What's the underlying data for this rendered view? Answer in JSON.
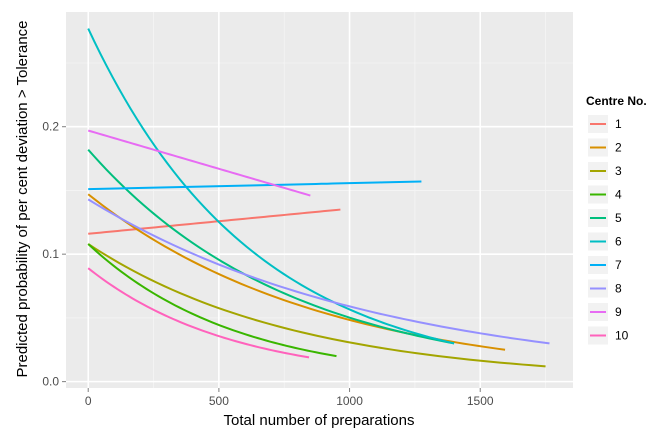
{
  "chart_data": {
    "type": "line",
    "title": "",
    "xlabel": "Total number of preparations",
    "ylabel": "Predicted probability of per cent deviation > Tolerance",
    "xlim": [
      -85,
      1855
    ],
    "ylim": [
      -0.005,
      0.29
    ],
    "x_ticks": [
      0,
      500,
      1000,
      1500
    ],
    "x_tick_labels": [
      "0",
      "500",
      "1000",
      "1500"
    ],
    "y_ticks": [
      0.0,
      0.1,
      0.2
    ],
    "y_tick_labels": [
      "0.0",
      "0.1",
      "0.2"
    ],
    "grid": true,
    "legend_title": "Centre No.",
    "legend_position": "right",
    "series": [
      {
        "name": "1",
        "color": "#F8766D",
        "x0": 0,
        "x1": 965,
        "y0": 0.116,
        "y1": 0.135,
        "form": "linear"
      },
      {
        "name": "2",
        "color": "#D89000",
        "x0": 0,
        "x1": 1595,
        "y0": 0.147,
        "y1": 0.025,
        "form": "exp"
      },
      {
        "name": "3",
        "color": "#A3A500",
        "x0": 0,
        "x1": 1750,
        "y0": 0.108,
        "y1": 0.012,
        "form": "exp"
      },
      {
        "name": "4",
        "color": "#39B600",
        "x0": 0,
        "x1": 950,
        "y0": 0.108,
        "y1": 0.02,
        "form": "exp"
      },
      {
        "name": "5",
        "color": "#00BF7D",
        "x0": 0,
        "x1": 1400,
        "y0": 0.182,
        "y1": 0.03,
        "form": "exp"
      },
      {
        "name": "6",
        "color": "#00BFC4",
        "x0": 0,
        "x1": 1400,
        "y0": 0.277,
        "y1": 0.03,
        "form": "exp"
      },
      {
        "name": "7",
        "color": "#00B0F6",
        "x0": 0,
        "x1": 1275,
        "y0": 0.151,
        "y1": 0.157,
        "form": "linear"
      },
      {
        "name": "8",
        "color": "#9590FF",
        "x0": 0,
        "x1": 1765,
        "y0": 0.143,
        "y1": 0.03,
        "form": "exp"
      },
      {
        "name": "9",
        "color": "#E76BF3",
        "x0": 0,
        "x1": 850,
        "y0": 0.197,
        "y1": 0.146,
        "form": "linear"
      },
      {
        "name": "10",
        "color": "#FF62BC",
        "x0": 0,
        "x1": 845,
        "y0": 0.089,
        "y1": 0.019,
        "form": "exp"
      }
    ]
  }
}
